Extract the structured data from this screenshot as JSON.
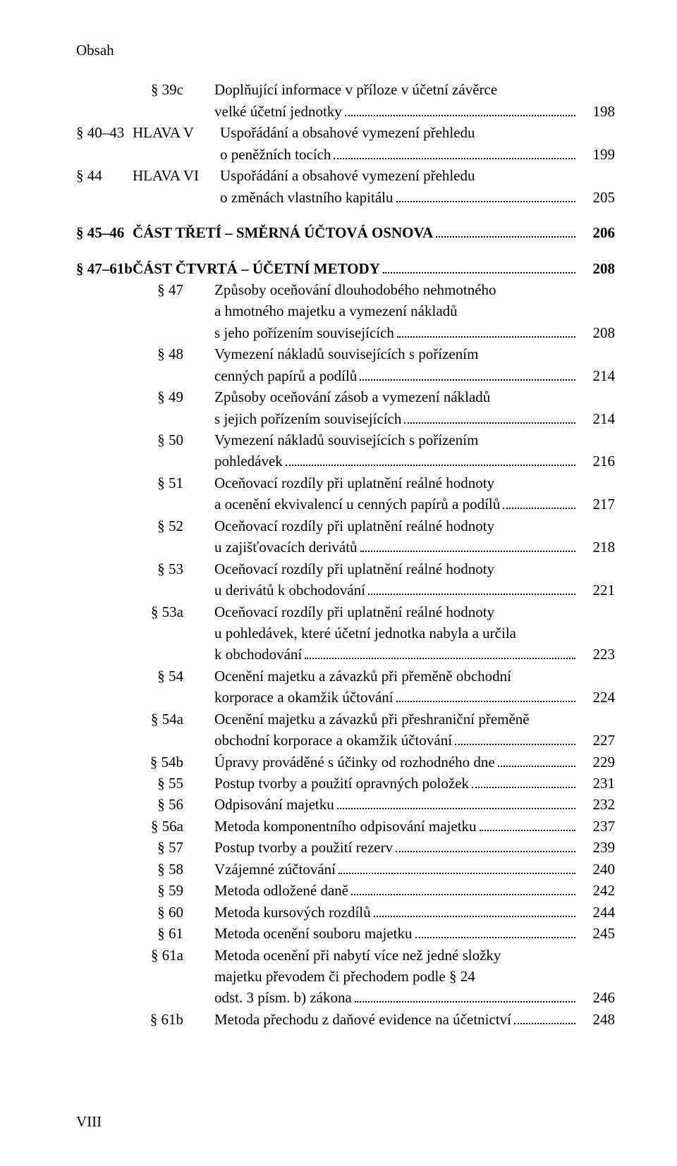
{
  "running_head": "Obsah",
  "page_number": "VIII",
  "entries": [
    {
      "ref": "§ 39c",
      "label": "",
      "lines": [
        "Doplňující informace v příloze v účetní závěrce",
        "velké účetní jednotky"
      ],
      "page": "198",
      "indent": true
    },
    {
      "ref": "§ 40–43",
      "label": "HLAVA V",
      "lines": [
        "Uspořádání a obsahové vymezení přehledu",
        "o peněžních tocích"
      ],
      "page": "199"
    },
    {
      "ref": "§ 44",
      "label": "HLAVA VI",
      "lines": [
        "Uspořádání a obsahové vymezení přehledu",
        "o změnách vlastního kapitálu"
      ],
      "page": "205"
    },
    {
      "gap": true
    },
    {
      "ref": "§ 45–46",
      "label": "",
      "lines": [
        "ČÁST TŘETÍ – SMĚRNÁ ÚČTOVÁ OSNOVA"
      ],
      "page": "206",
      "bold": true,
      "wide": true
    },
    {
      "gap": true
    },
    {
      "ref": "§ 47–61b",
      "label": "",
      "lines": [
        "ČÁST ČTVRTÁ – ÚČETNÍ METODY"
      ],
      "page": "208",
      "bold": true,
      "wide": true
    },
    {
      "ref": "§ 47",
      "label": "",
      "lines": [
        "Způsoby oceňování dlouhodobého nehmotného",
        "a hmotného majetku a vymezení nákladů",
        "s jeho pořízením souvisejících"
      ],
      "page": "208",
      "indent": true
    },
    {
      "ref": "§ 48",
      "label": "",
      "lines": [
        "Vymezení nákladů souvisejících s pořízením",
        "cenných papírů a podílů"
      ],
      "page": "214",
      "indent": true
    },
    {
      "ref": "§ 49",
      "label": "",
      "lines": [
        "Způsoby oceňování zásob a vymezení nákladů",
        "s jejich pořízením souvisejících"
      ],
      "page": "214",
      "indent": true
    },
    {
      "ref": "§ 50",
      "label": "",
      "lines": [
        "Vymezení nákladů souvisejících s pořízením",
        "pohledávek"
      ],
      "page": "216",
      "indent": true
    },
    {
      "ref": "§ 51",
      "label": "",
      "lines": [
        "Oceňovací rozdíly při uplatnění reálné hodnoty",
        "a ocenění ekvivalencí u cenných papírů a podílů"
      ],
      "page": "217",
      "indent": true
    },
    {
      "ref": "§ 52",
      "label": "",
      "lines": [
        "Oceňovací rozdíly při uplatnění reálné hodnoty",
        "u zajišťovacích derivátů"
      ],
      "page": "218",
      "indent": true
    },
    {
      "ref": "§ 53",
      "label": "",
      "lines": [
        "Oceňovací rozdíly při uplatnění reálné hodnoty",
        "u derivátů k obchodování"
      ],
      "page": "221",
      "indent": true
    },
    {
      "ref": "§ 53a",
      "label": "",
      "lines": [
        "Oceňovací rozdíly při uplatnění reálné hodnoty",
        "u pohledávek, které účetní jednotka nabyla a určila",
        "k obchodování"
      ],
      "page": "223",
      "indent": true
    },
    {
      "ref": "§ 54",
      "label": "",
      "lines": [
        "Ocenění majetku a závazků při přeměně obchodní",
        "korporace a okamžik účtování"
      ],
      "page": "224",
      "indent": true
    },
    {
      "ref": "§ 54a",
      "label": "",
      "lines": [
        "Ocenění majetku a závazků při přeshraniční přeměně",
        "obchodní korporace a okamžik účtování"
      ],
      "page": "227",
      "indent": true
    },
    {
      "ref": "§ 54b",
      "label": "",
      "lines": [
        "Úpravy prováděné s účinky od rozhodného dne"
      ],
      "page": "229",
      "indent": true
    },
    {
      "ref": "§ 55",
      "label": "",
      "lines": [
        "Postup tvorby a použití opravných položek"
      ],
      "page": "231",
      "indent": true
    },
    {
      "ref": "§ 56",
      "label": "",
      "lines": [
        "Odpisování majetku"
      ],
      "page": "232",
      "indent": true
    },
    {
      "ref": "§ 56a",
      "label": "",
      "lines": [
        "Metoda komponentního odpisování majetku"
      ],
      "page": "237",
      "indent": true
    },
    {
      "ref": "§ 57",
      "label": "",
      "lines": [
        "Postup tvorby a použití rezerv"
      ],
      "page": "239",
      "indent": true
    },
    {
      "ref": "§ 58",
      "label": "",
      "lines": [
        "Vzájemné zúčtování"
      ],
      "page": "240",
      "indent": true
    },
    {
      "ref": "§ 59",
      "label": "",
      "lines": [
        "Metoda odložené daně"
      ],
      "page": "242",
      "indent": true
    },
    {
      "ref": "§ 60",
      "label": "",
      "lines": [
        "Metoda kursových rozdílů"
      ],
      "page": "244",
      "indent": true
    },
    {
      "ref": "§ 61",
      "label": "",
      "lines": [
        "Metoda ocenění souboru majetku"
      ],
      "page": "245",
      "indent": true
    },
    {
      "ref": "§ 61a",
      "label": "",
      "lines": [
        "Metoda ocenění při nabytí více než jedné složky",
        "majetku převodem či přechodem podle § 24",
        "odst. 3 písm. b) zákona"
      ],
      "page": "246",
      "indent": true
    },
    {
      "ref": "§ 61b",
      "label": "",
      "lines": [
        "Metoda přechodu z daňové evidence na účetnictví"
      ],
      "page": "248",
      "indent": true
    }
  ]
}
